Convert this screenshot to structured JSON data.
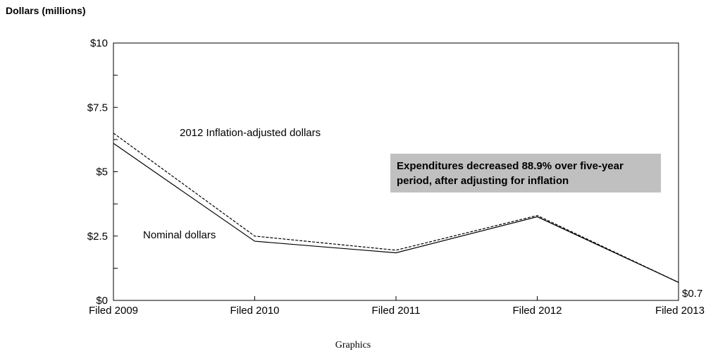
{
  "chart_data": {
    "type": "line",
    "ylabel": "Dollars (millions)",
    "categories": [
      "Filed 2009",
      "Filed 2010",
      "Filed 2011",
      "Filed 2012",
      "Filed 2013"
    ],
    "ylim": [
      0,
      10
    ],
    "yticks": [
      0,
      2.5,
      5,
      7.5,
      10
    ],
    "ytick_labels": [
      "$0",
      "$2.5",
      "$5",
      "$7.5",
      "$10"
    ],
    "series": [
      {
        "name": "2012 Inflation-adjusted dollars",
        "style": "dashed",
        "color": "#000000",
        "values": [
          6.5,
          2.5,
          1.95,
          3.3,
          0.7
        ]
      },
      {
        "name": "Nominal dollars",
        "style": "solid",
        "color": "#000000",
        "values": [
          6.1,
          2.3,
          1.85,
          3.25,
          0.7
        ]
      }
    ],
    "end_label": "$0.7",
    "annotation": {
      "lines": [
        "Expenditures decreased 88.9% over five-year",
        "period, after adjusting for inflation"
      ],
      "background": "#c0c0c0"
    },
    "caption": "Graphics"
  }
}
